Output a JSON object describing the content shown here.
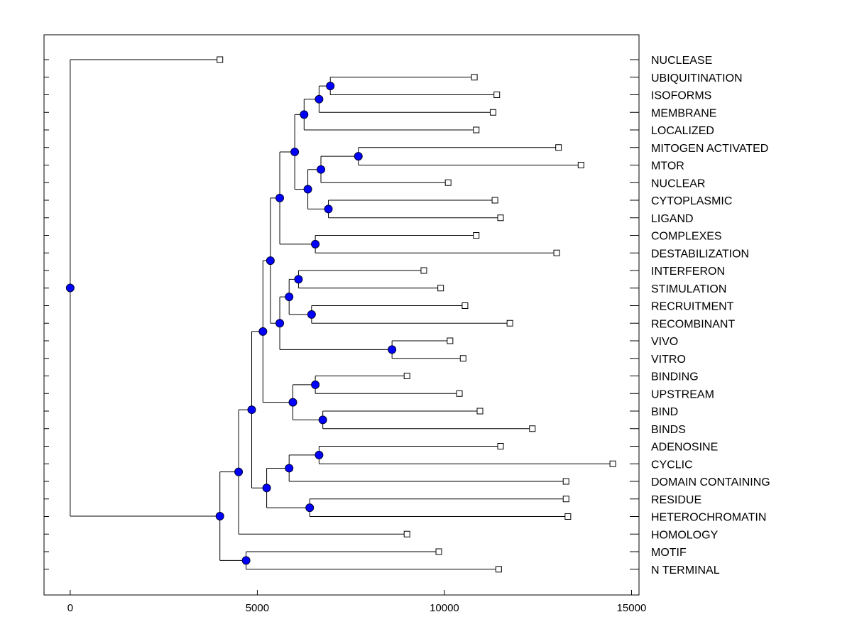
{
  "chart_data": {
    "type": "dendrogram",
    "title": "",
    "xlabel": "",
    "ylabel": "",
    "xlim": [
      -700,
      15200
    ],
    "xticks": [
      0,
      5000,
      10000,
      15000
    ],
    "xtick_labels": [
      "0",
      "5000",
      "10000",
      "15000"
    ],
    "leaves": [
      {
        "label": "NUCLEASE",
        "x": 4000
      },
      {
        "label": "UBIQUITINATION",
        "x": 10800
      },
      {
        "label": "ISOFORMS",
        "x": 11400
      },
      {
        "label": "MEMBRANE",
        "x": 11300
      },
      {
        "label": "LOCALIZED",
        "x": 10850
      },
      {
        "label": "MITOGEN ACTIVATED",
        "x": 13050
      },
      {
        "label": "MTOR",
        "x": 13650
      },
      {
        "label": "NUCLEAR",
        "x": 10100
      },
      {
        "label": "CYTOPLASMIC",
        "x": 11350
      },
      {
        "label": "LIGAND",
        "x": 11500
      },
      {
        "label": "COMPLEXES",
        "x": 10850
      },
      {
        "label": "DESTABILIZATION",
        "x": 13000
      },
      {
        "label": "INTERFERON",
        "x": 9450
      },
      {
        "label": "STIMULATION",
        "x": 9900
      },
      {
        "label": "RECRUITMENT",
        "x": 10550
      },
      {
        "label": "RECOMBINANT",
        "x": 11750
      },
      {
        "label": "VIVO",
        "x": 10150
      },
      {
        "label": "VITRO",
        "x": 10500
      },
      {
        "label": "BINDING",
        "x": 9000
      },
      {
        "label": "UPSTREAM",
        "x": 10400
      },
      {
        "label": "BIND",
        "x": 10950
      },
      {
        "label": "BINDS",
        "x": 12350
      },
      {
        "label": "ADENOSINE",
        "x": 11500
      },
      {
        "label": "CYCLIC",
        "x": 14500
      },
      {
        "label": "DOMAIN CONTAINING",
        "x": 13250
      },
      {
        "label": "RESIDUE",
        "x": 13250
      },
      {
        "label": "HETEROCHROMATIN",
        "x": 13300
      },
      {
        "label": "HOMOLOGY",
        "x": 9000
      },
      {
        "label": "MOTIF",
        "x": 9850
      },
      {
        "label": "N TERMINAL",
        "x": 11450
      }
    ],
    "merges": [
      {
        "id": "m1",
        "height": 6950,
        "children": [
          "L1",
          "L2"
        ]
      },
      {
        "id": "m2",
        "height": 6650,
        "children": [
          "m1",
          "L3"
        ]
      },
      {
        "id": "m3",
        "height": 6250,
        "children": [
          "m2",
          "L4"
        ]
      },
      {
        "id": "m4",
        "height": 7700,
        "children": [
          "L5",
          "L6"
        ]
      },
      {
        "id": "m5",
        "height": 6700,
        "children": [
          "m4",
          "L7"
        ]
      },
      {
        "id": "m6",
        "height": 6900,
        "children": [
          "L8",
          "L9"
        ]
      },
      {
        "id": "m7",
        "height": 6350,
        "children": [
          "m5",
          "m6"
        ]
      },
      {
        "id": "m8",
        "height": 6000,
        "children": [
          "m3",
          "m7"
        ]
      },
      {
        "id": "m9",
        "height": 6550,
        "children": [
          "L10",
          "L11"
        ]
      },
      {
        "id": "m10",
        "height": 5600,
        "children": [
          "m8",
          "m9"
        ]
      },
      {
        "id": "m11",
        "height": 6100,
        "children": [
          "L12",
          "L13"
        ]
      },
      {
        "id": "m12",
        "height": 6450,
        "children": [
          "L14",
          "L15"
        ]
      },
      {
        "id": "m13",
        "height": 5850,
        "children": [
          "m11",
          "m12"
        ]
      },
      {
        "id": "m14",
        "height": 8600,
        "children": [
          "L16",
          "L17"
        ]
      },
      {
        "id": "m15",
        "height": 5600,
        "children": [
          "m13",
          "m14"
        ]
      },
      {
        "id": "m16",
        "height": 5350,
        "children": [
          "m10",
          "m15"
        ]
      },
      {
        "id": "m17",
        "height": 6550,
        "children": [
          "L18",
          "L19"
        ]
      },
      {
        "id": "m18",
        "height": 6750,
        "children": [
          "L20",
          "L21"
        ]
      },
      {
        "id": "m19",
        "height": 5950,
        "children": [
          "m17",
          "m18"
        ]
      },
      {
        "id": "m20",
        "height": 5150,
        "children": [
          "m16",
          "m19"
        ]
      },
      {
        "id": "m21",
        "height": 6650,
        "children": [
          "L22",
          "L23"
        ]
      },
      {
        "id": "m22",
        "height": 5850,
        "children": [
          "m21",
          "L24"
        ]
      },
      {
        "id": "m23",
        "height": 6400,
        "children": [
          "L25",
          "L26"
        ]
      },
      {
        "id": "m24",
        "height": 5250,
        "children": [
          "m22",
          "m23"
        ]
      },
      {
        "id": "m25",
        "height": 4850,
        "children": [
          "m20",
          "m24"
        ]
      },
      {
        "id": "m26",
        "height": 4500,
        "children": [
          "m25",
          "L27"
        ]
      },
      {
        "id": "m27",
        "height": 4700,
        "children": [
          "L28",
          "L29"
        ]
      },
      {
        "id": "m28",
        "height": 4000,
        "children": [
          "m26",
          "m27"
        ]
      },
      {
        "id": "m29",
        "height": 0,
        "children": [
          "L0",
          "m28"
        ]
      }
    ],
    "colors": {
      "node_fill": "#0000ff",
      "node_stroke": "#000033",
      "line": "#000000",
      "leaf_fill": "#ffffff"
    }
  }
}
